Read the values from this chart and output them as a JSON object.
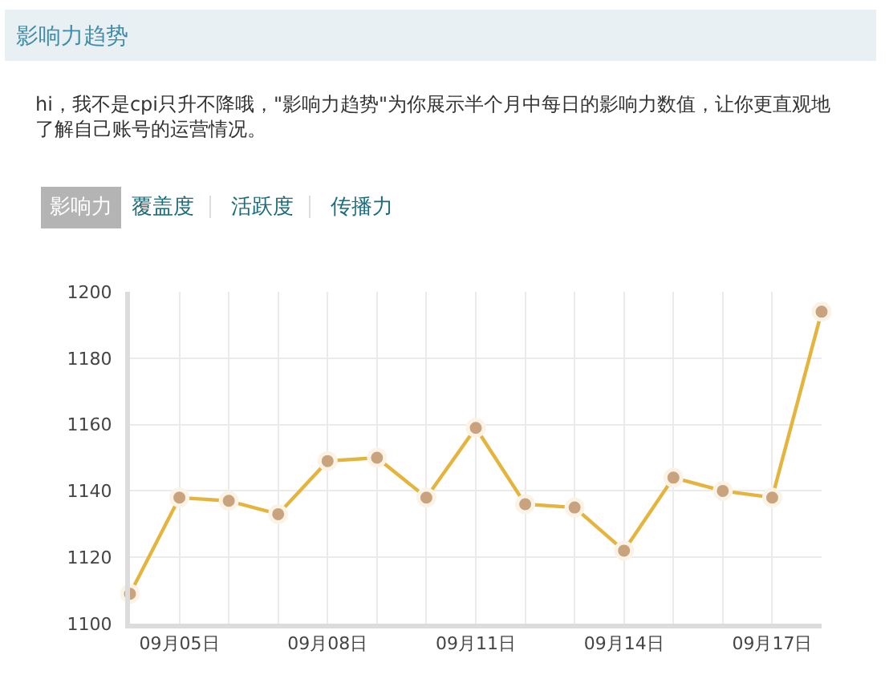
{
  "chart_data": {
    "type": "line",
    "title": "影响力趋势",
    "subtitle": "hi，我不是cpi只升不降哦，\"影响力趋势\"为你展示半个月中每日的影响力数值，让你更直观地了解自己账号的运营情况。",
    "annotations": [
      "影响力",
      "覆盖度",
      "活跃度",
      "传播力"
    ],
    "categories": [
      null,
      "09月05日",
      null,
      null,
      "09月08日",
      null,
      null,
      "09月11日",
      null,
      null,
      "09月14日",
      null,
      null,
      "09月17日",
      null
    ],
    "series": [
      {
        "color": "#e4b43c",
        "values": [
          1109,
          1138,
          1137,
          1133,
          1149,
          1150,
          1138,
          1159,
          1136,
          1135,
          1122,
          1144,
          1140,
          1138,
          1194
        ]
      }
    ],
    "ylim": [
      1100,
      1200
    ],
    "yticks": [
      1100,
      1120,
      1140,
      1160,
      1180,
      1200
    ],
    "grid": true,
    "marker": "circle",
    "line_style": "solid"
  }
}
